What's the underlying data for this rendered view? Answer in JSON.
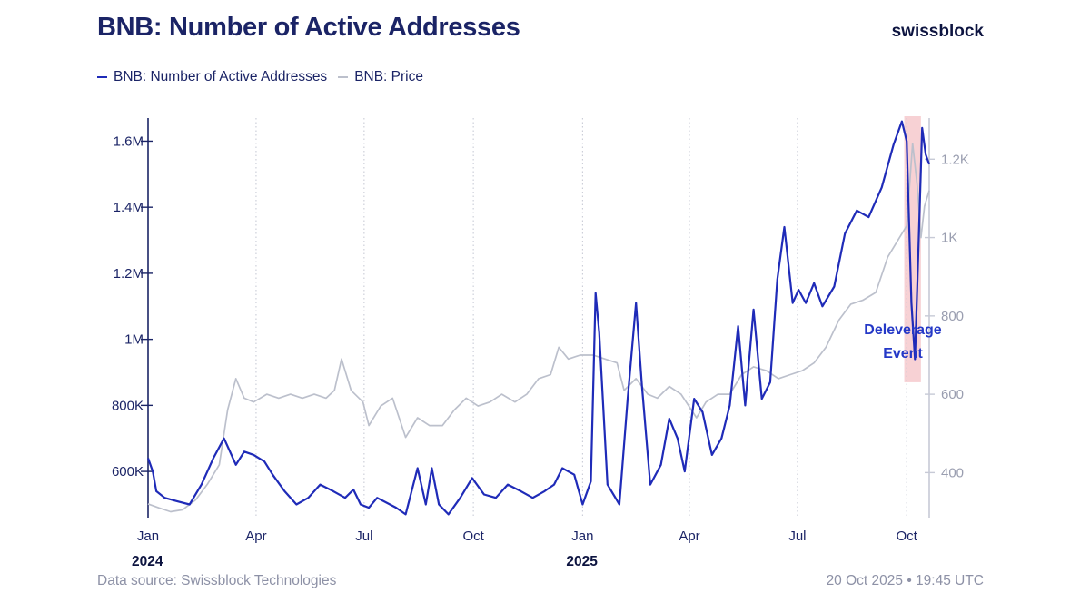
{
  "header": {
    "title": "BNB: Number of Active Addresses",
    "brand": "swissblock"
  },
  "legend": [
    {
      "label": "BNB: Number of Active Addresses",
      "color": "#1f2bb8"
    },
    {
      "label": "BNB: Price",
      "color": "#bcc0cc"
    }
  ],
  "footer": {
    "source": "Data source: Swissblock Technologies",
    "timestamp": "20 Oct 2025 • 19:45 UTC"
  },
  "colors": {
    "active_addresses": "#1f2bb8",
    "price": "#bcc0cc",
    "highlight": "#f6c9cc",
    "axis_text": "#1b2466",
    "right_axis_text": "#9a9eb0",
    "annotation": "#2438c7"
  },
  "chart_data": {
    "type": "line",
    "x_ticks": [
      "Jan",
      "Apr",
      "Jul",
      "Oct",
      "Jan",
      "Apr",
      "Jul",
      "Oct"
    ],
    "year_labels": [
      {
        "at": "2024-01-01",
        "label": "2024"
      },
      {
        "at": "2025-01-01",
        "label": "2025"
      }
    ],
    "x_range": [
      "2024-01-01",
      "2025-10-20"
    ],
    "y_left": {
      "ticks": [
        600000,
        800000,
        1000000,
        1200000,
        1400000,
        1600000
      ],
      "tick_labels": [
        "600K",
        "800K",
        "1M",
        "1.2M",
        "1.4M",
        "1.6M"
      ],
      "range": [
        460000,
        1670000
      ]
    },
    "y_right": {
      "ticks": [
        400,
        600,
        800,
        1000,
        1200
      ],
      "tick_labels": [
        "400",
        "600",
        "800",
        "1K",
        "1.2K"
      ],
      "range": [
        285,
        1305
      ]
    },
    "grid": "vertical dotted at quarter starts",
    "legend_position": "top-left",
    "series": [
      {
        "name": "BNB: Number of Active Addresses",
        "axis": "left",
        "x": [
          "2024-01-01",
          "2024-01-05",
          "2024-01-08",
          "2024-01-15",
          "2024-01-25",
          "2024-02-05",
          "2024-02-15",
          "2024-02-25",
          "2024-03-05",
          "2024-03-15",
          "2024-03-22",
          "2024-03-30",
          "2024-04-08",
          "2024-04-15",
          "2024-04-25",
          "2024-05-05",
          "2024-05-15",
          "2024-05-25",
          "2024-06-05",
          "2024-06-15",
          "2024-06-22",
          "2024-06-28",
          "2024-07-05",
          "2024-07-12",
          "2024-07-20",
          "2024-07-28",
          "2024-08-05",
          "2024-08-15",
          "2024-08-22",
          "2024-08-27",
          "2024-09-02",
          "2024-09-10",
          "2024-09-20",
          "2024-09-30",
          "2024-10-10",
          "2024-10-20",
          "2024-10-30",
          "2024-11-10",
          "2024-11-20",
          "2024-11-30",
          "2024-12-08",
          "2024-12-15",
          "2024-12-25",
          "2025-01-01",
          "2025-01-08",
          "2025-01-12",
          "2025-01-15",
          "2025-01-22",
          "2025-02-01",
          "2025-02-08",
          "2025-02-15",
          "2025-02-20",
          "2025-02-27",
          "2025-03-08",
          "2025-03-15",
          "2025-03-22",
          "2025-03-28",
          "2025-04-05",
          "2025-04-12",
          "2025-04-20",
          "2025-04-28",
          "2025-05-05",
          "2025-05-12",
          "2025-05-18",
          "2025-05-25",
          "2025-06-01",
          "2025-06-08",
          "2025-06-14",
          "2025-06-20",
          "2025-06-27",
          "2025-07-02",
          "2025-07-08",
          "2025-07-15",
          "2025-07-22",
          "2025-08-01",
          "2025-08-10",
          "2025-08-20",
          "2025-08-30",
          "2025-09-10",
          "2025-09-20",
          "2025-09-27",
          "2025-10-01",
          "2025-10-05",
          "2025-10-08",
          "2025-10-11",
          "2025-10-14",
          "2025-10-17",
          "2025-10-20"
        ],
        "values": [
          640000,
          600000,
          540000,
          520000,
          510000,
          500000,
          560000,
          640000,
          700000,
          620000,
          660000,
          650000,
          630000,
          590000,
          540000,
          500000,
          520000,
          560000,
          540000,
          520000,
          545000,
          500000,
          490000,
          520000,
          505000,
          490000,
          470000,
          610000,
          500000,
          610000,
          500000,
          470000,
          520000,
          580000,
          530000,
          520000,
          560000,
          540000,
          520000,
          540000,
          560000,
          610000,
          590000,
          500000,
          570000,
          1140000,
          1020000,
          560000,
          500000,
          820000,
          1110000,
          860000,
          560000,
          620000,
          760000,
          700000,
          600000,
          820000,
          780000,
          650000,
          700000,
          800000,
          1040000,
          800000,
          1090000,
          820000,
          870000,
          1180000,
          1340000,
          1110000,
          1150000,
          1110000,
          1170000,
          1100000,
          1160000,
          1320000,
          1390000,
          1370000,
          1460000,
          1590000,
          1660000,
          1600000,
          1110000,
          940000,
          1280000,
          1640000,
          1560000,
          1530000
        ]
      },
      {
        "name": "BNB: Price",
        "axis": "right",
        "x": [
          "2024-01-01",
          "2024-01-10",
          "2024-01-20",
          "2024-01-30",
          "2024-02-10",
          "2024-02-20",
          "2024-03-01",
          "2024-03-08",
          "2024-03-15",
          "2024-03-22",
          "2024-03-30",
          "2024-04-10",
          "2024-04-20",
          "2024-04-30",
          "2024-05-10",
          "2024-05-20",
          "2024-05-30",
          "2024-06-06",
          "2024-06-12",
          "2024-06-20",
          "2024-06-30",
          "2024-07-05",
          "2024-07-15",
          "2024-07-25",
          "2024-08-05",
          "2024-08-15",
          "2024-08-25",
          "2024-09-05",
          "2024-09-15",
          "2024-09-25",
          "2024-10-05",
          "2024-10-15",
          "2024-10-25",
          "2024-11-05",
          "2024-11-15",
          "2024-11-25",
          "2024-12-05",
          "2024-12-12",
          "2024-12-20",
          "2024-12-30",
          "2025-01-10",
          "2025-01-20",
          "2025-01-30",
          "2025-02-05",
          "2025-02-15",
          "2025-02-25",
          "2025-03-05",
          "2025-03-15",
          "2025-03-25",
          "2025-04-07",
          "2025-04-15",
          "2025-04-25",
          "2025-05-05",
          "2025-05-15",
          "2025-05-25",
          "2025-06-05",
          "2025-06-15",
          "2025-06-25",
          "2025-07-05",
          "2025-07-15",
          "2025-07-25",
          "2025-08-05",
          "2025-08-15",
          "2025-08-25",
          "2025-09-05",
          "2025-09-15",
          "2025-09-25",
          "2025-10-01",
          "2025-10-06",
          "2025-10-10",
          "2025-10-13",
          "2025-10-16",
          "2025-10-20"
        ],
        "values": [
          320,
          310,
          300,
          305,
          330,
          370,
          420,
          560,
          640,
          590,
          580,
          600,
          590,
          600,
          590,
          600,
          590,
          610,
          690,
          610,
          580,
          520,
          570,
          590,
          490,
          540,
          520,
          520,
          560,
          590,
          570,
          580,
          600,
          580,
          600,
          640,
          650,
          720,
          690,
          700,
          700,
          690,
          680,
          610,
          640,
          600,
          590,
          620,
          600,
          540,
          580,
          600,
          600,
          650,
          670,
          660,
          640,
          650,
          660,
          680,
          720,
          790,
          830,
          840,
          860,
          950,
          1000,
          1030,
          1240,
          1130,
          1000,
          1080,
          1120
        ]
      }
    ],
    "annotations": [
      {
        "text_lines": [
          "Deleverage",
          "Event"
        ],
        "x_start": "2025-09-29",
        "x_end": "2025-10-13"
      }
    ]
  }
}
